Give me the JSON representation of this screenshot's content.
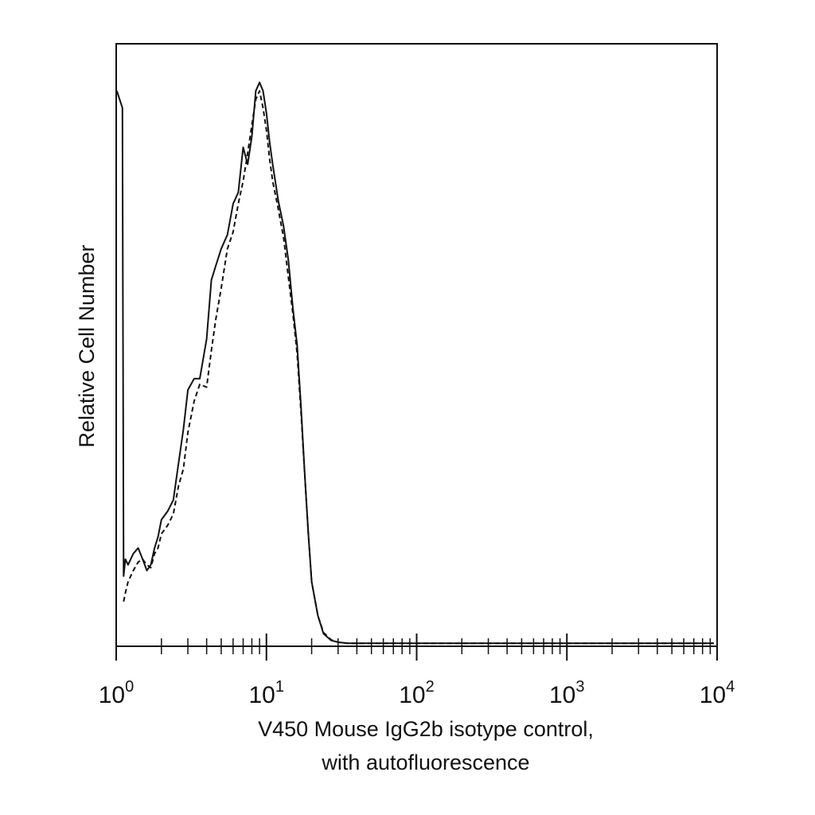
{
  "chart_data": {
    "type": "line",
    "title": "",
    "xlabel": [
      "V450 Mouse IgG2b isotype control,",
      "with autofluorescence"
    ],
    "ylabel": "Relative Cell Number",
    "x_scale": "log",
    "xlim": [
      1,
      10000
    ],
    "ylim": [
      0,
      100
    ],
    "grid": false,
    "legend": "none",
    "x_ticks": [
      {
        "base": "10",
        "exp": "0",
        "value": 1
      },
      {
        "base": "10",
        "exp": "1",
        "value": 10
      },
      {
        "base": "10",
        "exp": "2",
        "value": 100
      },
      {
        "base": "10",
        "exp": "3",
        "value": 1000
      },
      {
        "base": "10",
        "exp": "4",
        "value": 10000
      }
    ],
    "series": [
      {
        "style": "solid",
        "color": "#111111",
        "x": [
          1.01,
          1.1,
          1.12,
          1.15,
          1.2,
          1.3,
          1.4,
          1.5,
          1.6,
          1.7,
          1.8,
          1.9,
          2.0,
          2.2,
          2.4,
          2.6,
          2.8,
          3.0,
          3.3,
          3.6,
          4.0,
          4.3,
          4.6,
          5.0,
          5.5,
          6.0,
          6.5,
          7.0,
          7.5,
          8.0,
          8.5,
          9.0,
          9.5,
          10.0,
          10.5,
          11.0,
          12.0,
          13.0,
          14.0,
          15.0,
          16.0,
          17.0,
          18.0,
          19.0,
          20.0,
          22.0,
          24.0,
          27.0,
          30.0,
          35.0,
          40.0,
          60.0,
          100.0,
          1000.0,
          9500.0
        ],
        "y": [
          98.0,
          95.0,
          12.0,
          15.0,
          14.0,
          16.0,
          17.0,
          15.0,
          13.0,
          14.0,
          17.0,
          19.0,
          22.0,
          23.5,
          25.5,
          32.0,
          38.0,
          45.0,
          47.0,
          47.0,
          54.0,
          64.5,
          67.0,
          70.0,
          72.5,
          78.0,
          80.0,
          88.0,
          85.0,
          90.0,
          98.0,
          99.5,
          98.0,
          94.0,
          89.0,
          85.0,
          78.5,
          74.0,
          68.0,
          59.5,
          53.0,
          42.0,
          30.0,
          19.5,
          11.0,
          5.0,
          1.8,
          0.6,
          0.3,
          0.1,
          0.1,
          0.1,
          0.1,
          0.1,
          0.1
        ]
      },
      {
        "style": "dashed",
        "color": "#111111",
        "x": [
          1.12,
          1.15,
          1.2,
          1.3,
          1.4,
          1.5,
          1.6,
          1.7,
          1.8,
          1.9,
          2.0,
          2.2,
          2.4,
          2.6,
          2.8,
          3.0,
          3.3,
          3.6,
          4.0,
          4.3,
          4.6,
          5.0,
          5.5,
          6.0,
          6.5,
          7.0,
          7.5,
          8.0,
          8.5,
          9.0,
          9.5,
          10.0,
          10.5,
          11.0,
          12.0,
          13.0,
          14.0,
          15.0,
          16.0,
          17.0,
          18.0,
          19.0,
          20.0,
          22.0,
          24.0,
          27.0,
          30.0,
          35.0,
          40.0,
          60.0,
          100.0,
          1000.0,
          9500.0
        ],
        "y": [
          7.5,
          9.0,
          11.0,
          13.0,
          14.5,
          15.0,
          14.0,
          13.5,
          16.0,
          17.0,
          19.5,
          21.0,
          23.0,
          28.0,
          31.0,
          37.5,
          43.0,
          46.0,
          45.5,
          52.0,
          57.5,
          63.0,
          70.0,
          73.0,
          78.0,
          82.0,
          87.0,
          92.0,
          96.5,
          98.0,
          95.0,
          91.0,
          86.0,
          82.0,
          77.0,
          72.0,
          65.0,
          58.5,
          51.5,
          41.0,
          30.0,
          19.5,
          11.0,
          5.0,
          2.0,
          0.7,
          0.3,
          0.1,
          0.1,
          0.1,
          0.1,
          0.1,
          0.1
        ]
      }
    ]
  }
}
